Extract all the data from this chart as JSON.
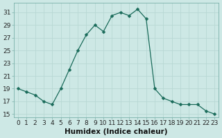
{
  "x": [
    0,
    1,
    2,
    3,
    4,
    5,
    6,
    7,
    8,
    9,
    10,
    11,
    12,
    13,
    14,
    15,
    16,
    17,
    18,
    19,
    20,
    21,
    22,
    23
  ],
  "y": [
    19,
    18.5,
    18,
    17,
    16.5,
    19,
    22,
    25,
    27.5,
    29,
    28,
    30.5,
    31,
    30.5,
    31.5,
    30,
    19,
    17.5,
    17,
    16.5,
    16.5,
    16.5,
    15.5,
    15
  ],
  "line_color": "#1a6b5a",
  "marker": "D",
  "marker_size": 2.5,
  "bg_color": "#cde8e5",
  "grid_color": "#b8d8d4",
  "xlabel": "Humidex (Indice chaleur)",
  "ylim": [
    14.5,
    32.5
  ],
  "yticks": [
    15,
    17,
    19,
    21,
    23,
    25,
    27,
    29,
    31
  ],
  "xticks": [
    0,
    1,
    2,
    3,
    4,
    5,
    6,
    7,
    8,
    9,
    10,
    11,
    12,
    13,
    14,
    15,
    16,
    17,
    18,
    19,
    20,
    21,
    22,
    23
  ],
  "tick_fontsize": 6.5,
  "xlabel_fontsize": 7.5
}
